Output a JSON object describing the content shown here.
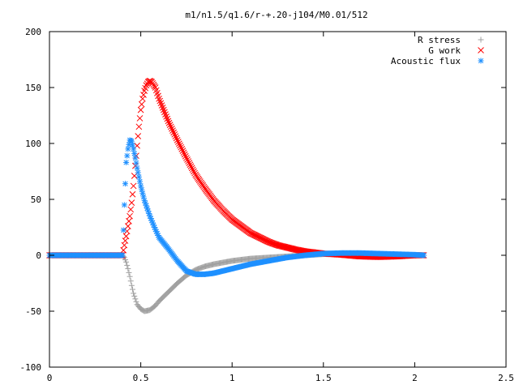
{
  "chart_data": {
    "type": "scatter",
    "title": "m1/n1.5/q1.6/r-+.20-j104/M0.01/512",
    "xlabel": "",
    "ylabel": "",
    "xlim": [
      0,
      2.5
    ],
    "ylim": [
      -100,
      200
    ],
    "xticks": [
      {
        "value": 0,
        "label": "0"
      },
      {
        "value": 0.5,
        "label": "0.5"
      },
      {
        "value": 1,
        "label": "1"
      },
      {
        "value": 1.5,
        "label": "1.5"
      },
      {
        "value": 2,
        "label": "2"
      },
      {
        "value": 2.5,
        "label": "2.5"
      }
    ],
    "yticks": [
      {
        "value": -100,
        "label": "-100"
      },
      {
        "value": -50,
        "label": "-50"
      },
      {
        "value": 0,
        "label": "0"
      },
      {
        "value": 50,
        "label": "50"
      },
      {
        "value": 100,
        "label": "100"
      },
      {
        "value": 150,
        "label": "150"
      },
      {
        "value": 200,
        "label": "200"
      }
    ],
    "grid": false,
    "legend_position": "top-right",
    "series": [
      {
        "name": "R stress",
        "marker": "plus",
        "color": "#a0a0a0",
        "points": [
          [
            0.0,
            0
          ],
          [
            0.05,
            0
          ],
          [
            0.1,
            0
          ],
          [
            0.15,
            0
          ],
          [
            0.2,
            0
          ],
          [
            0.25,
            0
          ],
          [
            0.3,
            0
          ],
          [
            0.35,
            0
          ],
          [
            0.4,
            0
          ],
          [
            0.41,
            -2
          ],
          [
            0.42,
            -6
          ],
          [
            0.43,
            -12
          ],
          [
            0.44,
            -19
          ],
          [
            0.45,
            -27
          ],
          [
            0.46,
            -34
          ],
          [
            0.47,
            -39
          ],
          [
            0.48,
            -44
          ],
          [
            0.5,
            -48
          ],
          [
            0.52,
            -50
          ],
          [
            0.55,
            -49
          ],
          [
            0.58,
            -45
          ],
          [
            0.6,
            -41
          ],
          [
            0.65,
            -33
          ],
          [
            0.7,
            -25
          ],
          [
            0.75,
            -18
          ],
          [
            0.8,
            -13
          ],
          [
            0.85,
            -10
          ],
          [
            0.9,
            -8
          ],
          [
            1.0,
            -5
          ],
          [
            1.1,
            -3
          ],
          [
            1.2,
            -2
          ],
          [
            1.3,
            -1
          ],
          [
            1.4,
            0
          ],
          [
            1.5,
            1
          ],
          [
            1.6,
            1.5
          ],
          [
            1.7,
            1.5
          ],
          [
            1.8,
            1
          ],
          [
            1.9,
            0.5
          ],
          [
            2.0,
            0.3
          ],
          [
            2.05,
            0
          ]
        ]
      },
      {
        "name": "G work",
        "marker": "cross",
        "color": "#ff0000",
        "points": [
          [
            0.0,
            0
          ],
          [
            0.1,
            0
          ],
          [
            0.2,
            0
          ],
          [
            0.3,
            0
          ],
          [
            0.4,
            0
          ],
          [
            0.41,
            9
          ],
          [
            0.42,
            17
          ],
          [
            0.43,
            26
          ],
          [
            0.44,
            35
          ],
          [
            0.45,
            47
          ],
          [
            0.46,
            62
          ],
          [
            0.47,
            80
          ],
          [
            0.48,
            98
          ],
          [
            0.49,
            115
          ],
          [
            0.5,
            130
          ],
          [
            0.51,
            140
          ],
          [
            0.52,
            147
          ],
          [
            0.53,
            152
          ],
          [
            0.54,
            155
          ],
          [
            0.55,
            156
          ],
          [
            0.56,
            155
          ],
          [
            0.58,
            150
          ],
          [
            0.6,
            140
          ],
          [
            0.65,
            120
          ],
          [
            0.7,
            103
          ],
          [
            0.75,
            87
          ],
          [
            0.8,
            72
          ],
          [
            0.85,
            60
          ],
          [
            0.9,
            49
          ],
          [
            0.95,
            40
          ],
          [
            1.0,
            32
          ],
          [
            1.05,
            26
          ],
          [
            1.1,
            20
          ],
          [
            1.15,
            16
          ],
          [
            1.2,
            12
          ],
          [
            1.25,
            9
          ],
          [
            1.3,
            7
          ],
          [
            1.35,
            5
          ],
          [
            1.4,
            3.5
          ],
          [
            1.45,
            2.5
          ],
          [
            1.5,
            1.5
          ],
          [
            1.55,
            1
          ],
          [
            1.6,
            0.5
          ],
          [
            1.7,
            -1
          ],
          [
            1.8,
            -1.5
          ],
          [
            1.9,
            -1
          ],
          [
            2.0,
            0
          ],
          [
            2.05,
            0
          ]
        ]
      },
      {
        "name": "Acoustic flux",
        "marker": "star",
        "color": "#1e90ff",
        "points": [
          [
            0.0,
            0
          ],
          [
            0.05,
            0
          ],
          [
            0.1,
            0
          ],
          [
            0.15,
            0
          ],
          [
            0.2,
            0
          ],
          [
            0.25,
            0
          ],
          [
            0.3,
            0
          ],
          [
            0.35,
            0
          ],
          [
            0.4,
            0
          ],
          [
            0.41,
            45
          ],
          [
            0.42,
            83
          ],
          [
            0.43,
            95
          ],
          [
            0.44,
            103
          ],
          [
            0.45,
            102
          ],
          [
            0.46,
            95
          ],
          [
            0.47,
            87
          ],
          [
            0.48,
            78
          ],
          [
            0.5,
            62
          ],
          [
            0.52,
            49
          ],
          [
            0.55,
            35
          ],
          [
            0.58,
            23
          ],
          [
            0.6,
            16
          ],
          [
            0.65,
            6
          ],
          [
            0.7,
            -5
          ],
          [
            0.75,
            -14
          ],
          [
            0.8,
            -17
          ],
          [
            0.85,
            -17
          ],
          [
            0.9,
            -16
          ],
          [
            0.95,
            -14
          ],
          [
            1.0,
            -12
          ],
          [
            1.1,
            -8
          ],
          [
            1.2,
            -5
          ],
          [
            1.3,
            -2
          ],
          [
            1.4,
            0
          ],
          [
            1.5,
            1.5
          ],
          [
            1.6,
            2
          ],
          [
            1.7,
            2
          ],
          [
            1.8,
            1.5
          ],
          [
            1.9,
            1
          ],
          [
            2.0,
            0.5
          ],
          [
            2.05,
            0
          ]
        ]
      }
    ]
  }
}
